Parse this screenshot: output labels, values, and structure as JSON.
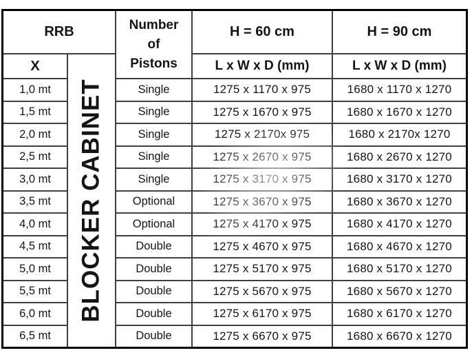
{
  "table": {
    "header": {
      "rrb": "RRB",
      "x": "X",
      "pistons_lines": [
        "Number",
        "of",
        "Pistons"
      ],
      "h60": "H = 60 cm",
      "h90": "H = 90 cm",
      "lwd_h60": "L x W x D (mm)",
      "lwd_h90": "L x W x D (mm)"
    },
    "vertical_label": "BLOCKER CABINET",
    "rows": [
      {
        "size": "1,0 mt",
        "pistons": "Single",
        "h60": "1275 x 1170 x 975",
        "h90": "1680 x 1170 x 1270"
      },
      {
        "size": "1,5 mt",
        "pistons": "Single",
        "h60": "1275 x 1670 x 975",
        "h90": "1680 x 1670 x 1270"
      },
      {
        "size": "2,0 mt",
        "pistons": "Single",
        "h60": "1275 x 2170x 975",
        "h90": "1680 x 2170x 1270"
      },
      {
        "size": "2,5 mt",
        "pistons": "Single",
        "h60": "1275 x 2670 x 975",
        "h90": "1680 x 2670 x 1270"
      },
      {
        "size": "3,0 mt",
        "pistons": "Single",
        "h60": "1275 x 3170 x 975",
        "h90": "1680 x 3170 x 1270"
      },
      {
        "size": "3,5 mt",
        "pistons": "Optional",
        "h60": "1275 x 3670 x 975",
        "h90": "1680 x 3670 x 1270"
      },
      {
        "size": "4,0 mt",
        "pistons": "Optional",
        "h60": "1275 x 4170 x 975",
        "h90": "1680 x 4170 x 1270"
      },
      {
        "size": "4,5 mt",
        "pistons": "Double",
        "h60": "1275 x 4670 x 975",
        "h90": "1680 x 4670 x 1270"
      },
      {
        "size": "5,0 mt",
        "pistons": "Double",
        "h60": "1275 x 5170 x 975",
        "h90": "1680 x 5170 x 1270"
      },
      {
        "size": "5,5 mt",
        "pistons": "Double",
        "h60": "1275 x 5670 x 975",
        "h90": "1680 x 5670 x 1270"
      },
      {
        "size": "6,0 mt",
        "pistons": "Double",
        "h60": "1275 x 6170 x 975",
        "h90": "1680 x 6170 x 1270"
      },
      {
        "size": "6,5 mt",
        "pistons": "Double",
        "h60": "1275 x 6670 x 975",
        "h90": "1680 x 6670 x 1270"
      }
    ],
    "colors": {
      "outer_border": "#000000",
      "inner_lines": "#3f3f3f",
      "text": "#141414",
      "background": "#ffffff"
    }
  }
}
